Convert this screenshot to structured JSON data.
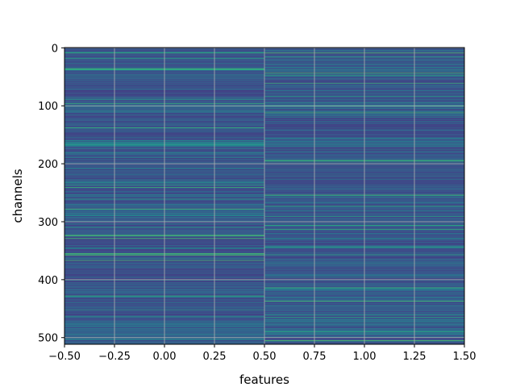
{
  "chart_data": {
    "type": "heatmap",
    "title": "",
    "xlabel": "features",
    "ylabel": "channels",
    "x_columns": [
      0,
      1
    ],
    "xlim": [
      -0.5,
      1.5
    ],
    "ylim": [
      511.5,
      -0.5
    ],
    "n_rows": 512,
    "colormap": "viridis",
    "value_range": [
      0,
      1
    ],
    "grid": true,
    "x_ticks": [
      "−0.50",
      "−0.25",
      "0.00",
      "0.25",
      "0.50",
      "0.75",
      "1.00",
      "1.25",
      "1.50"
    ],
    "x_tick_values": [
      -0.5,
      -0.25,
      0.0,
      0.25,
      0.5,
      0.75,
      1.0,
      1.25,
      1.5
    ],
    "y_ticks": [
      "0",
      "100",
      "200",
      "300",
      "400",
      "500"
    ],
    "y_tick_values": [
      0,
      100,
      200,
      300,
      400,
      500
    ],
    "bands": [
      {
        "rows": [
          34,
          40
        ],
        "column": 0,
        "value": 0.72
      },
      {
        "rows": [
          34,
          40
        ],
        "column": 1,
        "value": 0.6
      },
      {
        "rows": [
          96,
          110
        ],
        "column": 0,
        "value": 0.45
      },
      {
        "rows": [
          96,
          118
        ],
        "column": 1,
        "value": 0.5
      },
      {
        "rows": [
          160,
          170
        ],
        "column": 0,
        "value": 0.62
      },
      {
        "rows": [
          160,
          170
        ],
        "column": 1,
        "value": 0.55
      },
      {
        "rows": [
          270,
          300
        ],
        "column": 0,
        "value": 0.48
      },
      {
        "rows": [
          270,
          300
        ],
        "column": 1,
        "value": 0.42
      },
      {
        "rows": [
          405,
          440
        ],
        "column": 0,
        "value": 0.5
      },
      {
        "rows": [
          405,
          440
        ],
        "column": 1,
        "value": 0.45
      },
      {
        "rows": [
          470,
          511
        ],
        "column": 0,
        "value": 0.46
      },
      {
        "rows": [
          470,
          511
        ],
        "column": 1,
        "value": 0.44
      }
    ]
  }
}
